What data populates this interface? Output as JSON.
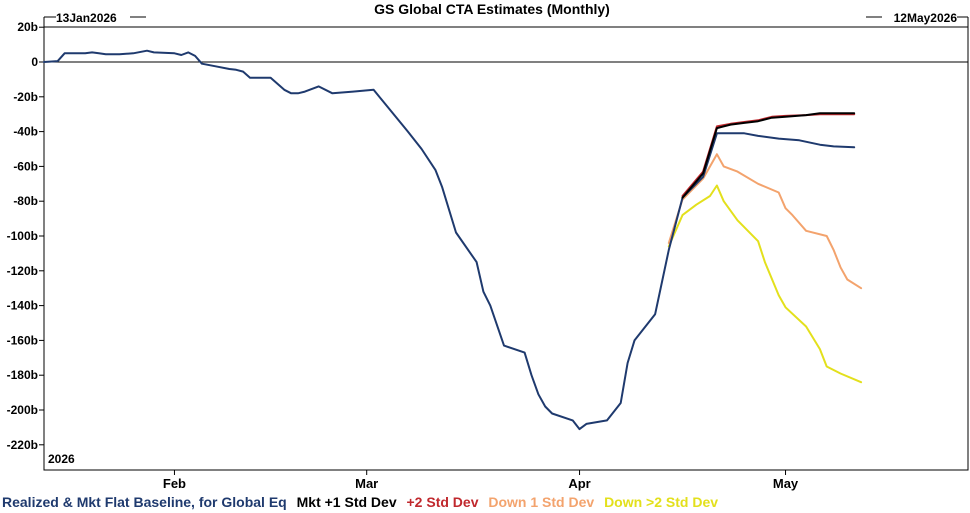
{
  "chart_data": {
    "type": "line",
    "title": "GS Global CTA Estimates (Monthly)",
    "start_label": "13Jan2026",
    "end_label": "12May2026",
    "year_label": "2026",
    "x_range": [
      "2026-01-13",
      "2026-05-12"
    ],
    "ylim": [
      -225,
      22
    ],
    "y_ticks": [
      {
        "value": 20,
        "label": "20b"
      },
      {
        "value": 0,
        "label": "0"
      },
      {
        "value": -20,
        "label": "-20b"
      },
      {
        "value": -40,
        "label": "-40b"
      },
      {
        "value": -60,
        "label": "-60b"
      },
      {
        "value": -80,
        "label": "-80b"
      },
      {
        "value": -100,
        "label": "-100b"
      },
      {
        "value": -120,
        "label": "-120b"
      },
      {
        "value": -140,
        "label": "-140b"
      },
      {
        "value": -160,
        "label": "-160b"
      },
      {
        "value": -180,
        "label": "-180b"
      },
      {
        "value": -200,
        "label": "-200b"
      },
      {
        "value": -220,
        "label": "-220b"
      }
    ],
    "x_ticks": [
      {
        "date": "2026-02-01",
        "label": "Feb"
      },
      {
        "date": "2026-03-01",
        "label": "Mar"
      },
      {
        "date": "2026-04-01",
        "label": "Apr"
      },
      {
        "date": "2026-05-01",
        "label": "May"
      }
    ],
    "grid": false,
    "legend_position": "bottom",
    "series": [
      {
        "name": "Realized & Mkt Flat Baseline, for Global Eq",
        "color": "#1f3a6e",
        "points": [
          [
            "2026-01-13",
            0
          ],
          [
            "2026-01-15",
            0.5
          ],
          [
            "2026-01-16",
            5
          ],
          [
            "2026-01-19",
            5
          ],
          [
            "2026-01-20",
            5.5
          ],
          [
            "2026-01-21",
            5
          ],
          [
            "2026-01-22",
            4.5
          ],
          [
            "2026-01-24",
            4.5
          ],
          [
            "2026-01-26",
            5
          ],
          [
            "2026-01-28",
            6.5
          ],
          [
            "2026-01-29",
            5.5
          ],
          [
            "2026-02-01",
            5
          ],
          [
            "2026-02-02",
            4
          ],
          [
            "2026-02-03",
            5.5
          ],
          [
            "2026-02-04",
            3.5
          ],
          [
            "2026-02-05",
            -1
          ],
          [
            "2026-02-07",
            -2.5
          ],
          [
            "2026-02-09",
            -4
          ],
          [
            "2026-02-10",
            -4.5
          ],
          [
            "2026-02-11",
            -5.5
          ],
          [
            "2026-02-12",
            -9
          ],
          [
            "2026-02-15",
            -9
          ],
          [
            "2026-02-17",
            -16
          ],
          [
            "2026-02-18",
            -18
          ],
          [
            "2026-02-19",
            -18
          ],
          [
            "2026-02-20",
            -17
          ],
          [
            "2026-02-22",
            -14
          ],
          [
            "2026-02-24",
            -18
          ],
          [
            "2026-02-27",
            -17
          ],
          [
            "2026-03-02",
            -16
          ],
          [
            "2026-03-07",
            -40
          ],
          [
            "2026-03-09",
            -50
          ],
          [
            "2026-03-11",
            -62
          ],
          [
            "2026-03-12",
            -72
          ],
          [
            "2026-03-14",
            -98
          ],
          [
            "2026-03-17",
            -115
          ],
          [
            "2026-03-18",
            -132
          ],
          [
            "2026-03-19",
            -140
          ],
          [
            "2026-03-21",
            -163
          ],
          [
            "2026-03-24",
            -167
          ],
          [
            "2026-03-25",
            -180
          ],
          [
            "2026-03-26",
            -191
          ],
          [
            "2026-03-27",
            -198
          ],
          [
            "2026-03-28",
            -202
          ],
          [
            "2026-03-31",
            -206
          ],
          [
            "2026-04-01",
            -211
          ],
          [
            "2026-04-02",
            -208
          ],
          [
            "2026-04-05",
            -206
          ],
          [
            "2026-04-07",
            -196
          ],
          [
            "2026-04-08",
            -173
          ],
          [
            "2026-04-09",
            -160
          ],
          [
            "2026-04-12",
            -145
          ],
          [
            "2026-04-14",
            -108
          ],
          [
            "2026-04-16",
            -78
          ],
          [
            "2026-04-19",
            -66
          ],
          [
            "2026-04-21",
            -41
          ],
          [
            "2026-04-25",
            -41
          ],
          [
            "2026-04-27",
            -42.5
          ],
          [
            "2026-04-30",
            -44
          ],
          [
            "2026-05-03",
            -45
          ],
          [
            "2026-05-06",
            -47.5
          ],
          [
            "2026-05-08",
            -48.5
          ],
          [
            "2026-05-11",
            -49
          ]
        ]
      },
      {
        "name": "Mkt +1 Std Dev",
        "color": "#000000",
        "points": [
          [
            "2026-04-16",
            -78
          ],
          [
            "2026-04-19",
            -64
          ],
          [
            "2026-04-21",
            -38
          ],
          [
            "2026-04-23",
            -36
          ],
          [
            "2026-04-25",
            -35
          ],
          [
            "2026-04-27",
            -34
          ],
          [
            "2026-04-29",
            -32
          ],
          [
            "2026-05-01",
            -31.5
          ],
          [
            "2026-05-04",
            -30.5
          ],
          [
            "2026-05-06",
            -29.5
          ],
          [
            "2026-05-08",
            -29.5
          ],
          [
            "2026-05-11",
            -29.5
          ]
        ]
      },
      {
        "name": "+2 Std Dev",
        "color": "#c0282d",
        "points": [
          [
            "2026-04-16",
            -77
          ],
          [
            "2026-04-19",
            -63
          ],
          [
            "2026-04-21",
            -37
          ],
          [
            "2026-04-23",
            -35.5
          ],
          [
            "2026-04-25",
            -34.5
          ],
          [
            "2026-04-27",
            -33.5
          ],
          [
            "2026-04-29",
            -31.5
          ],
          [
            "2026-05-01",
            -31
          ],
          [
            "2026-05-04",
            -30.5
          ],
          [
            "2026-05-06",
            -30
          ],
          [
            "2026-05-08",
            -30
          ],
          [
            "2026-05-11",
            -30
          ]
        ]
      },
      {
        "name": "Down 1 Std Dev",
        "color": "#f3a36d",
        "points": [
          [
            "2026-04-14",
            -104
          ],
          [
            "2026-04-16",
            -79
          ],
          [
            "2026-04-19",
            -67
          ],
          [
            "2026-04-21",
            -53
          ],
          [
            "2026-04-22",
            -60
          ],
          [
            "2026-04-24",
            -63
          ],
          [
            "2026-04-27",
            -70
          ],
          [
            "2026-04-30",
            -75
          ],
          [
            "2026-05-01",
            -84
          ],
          [
            "2026-05-02",
            -88
          ],
          [
            "2026-05-04",
            -97
          ],
          [
            "2026-05-07",
            -100
          ],
          [
            "2026-05-08",
            -108
          ],
          [
            "2026-05-09",
            -118
          ],
          [
            "2026-05-10",
            -125
          ],
          [
            "2026-05-12",
            -130
          ]
        ]
      },
      {
        "name": "Down >2 Std Dev",
        "color": "#e3e01c",
        "points": [
          [
            "2026-04-14",
            -106
          ],
          [
            "2026-04-16",
            -88
          ],
          [
            "2026-04-18",
            -82
          ],
          [
            "2026-04-20",
            -77
          ],
          [
            "2026-04-21",
            -71
          ],
          [
            "2026-04-22",
            -80
          ],
          [
            "2026-04-24",
            -91
          ],
          [
            "2026-04-27",
            -103
          ],
          [
            "2026-04-28",
            -115
          ],
          [
            "2026-04-30",
            -134
          ],
          [
            "2026-05-01",
            -141
          ],
          [
            "2026-05-04",
            -152
          ],
          [
            "2026-05-06",
            -165
          ],
          [
            "2026-05-07",
            -175
          ],
          [
            "2026-05-09",
            -179
          ],
          [
            "2026-05-12",
            -184
          ]
        ]
      }
    ]
  }
}
